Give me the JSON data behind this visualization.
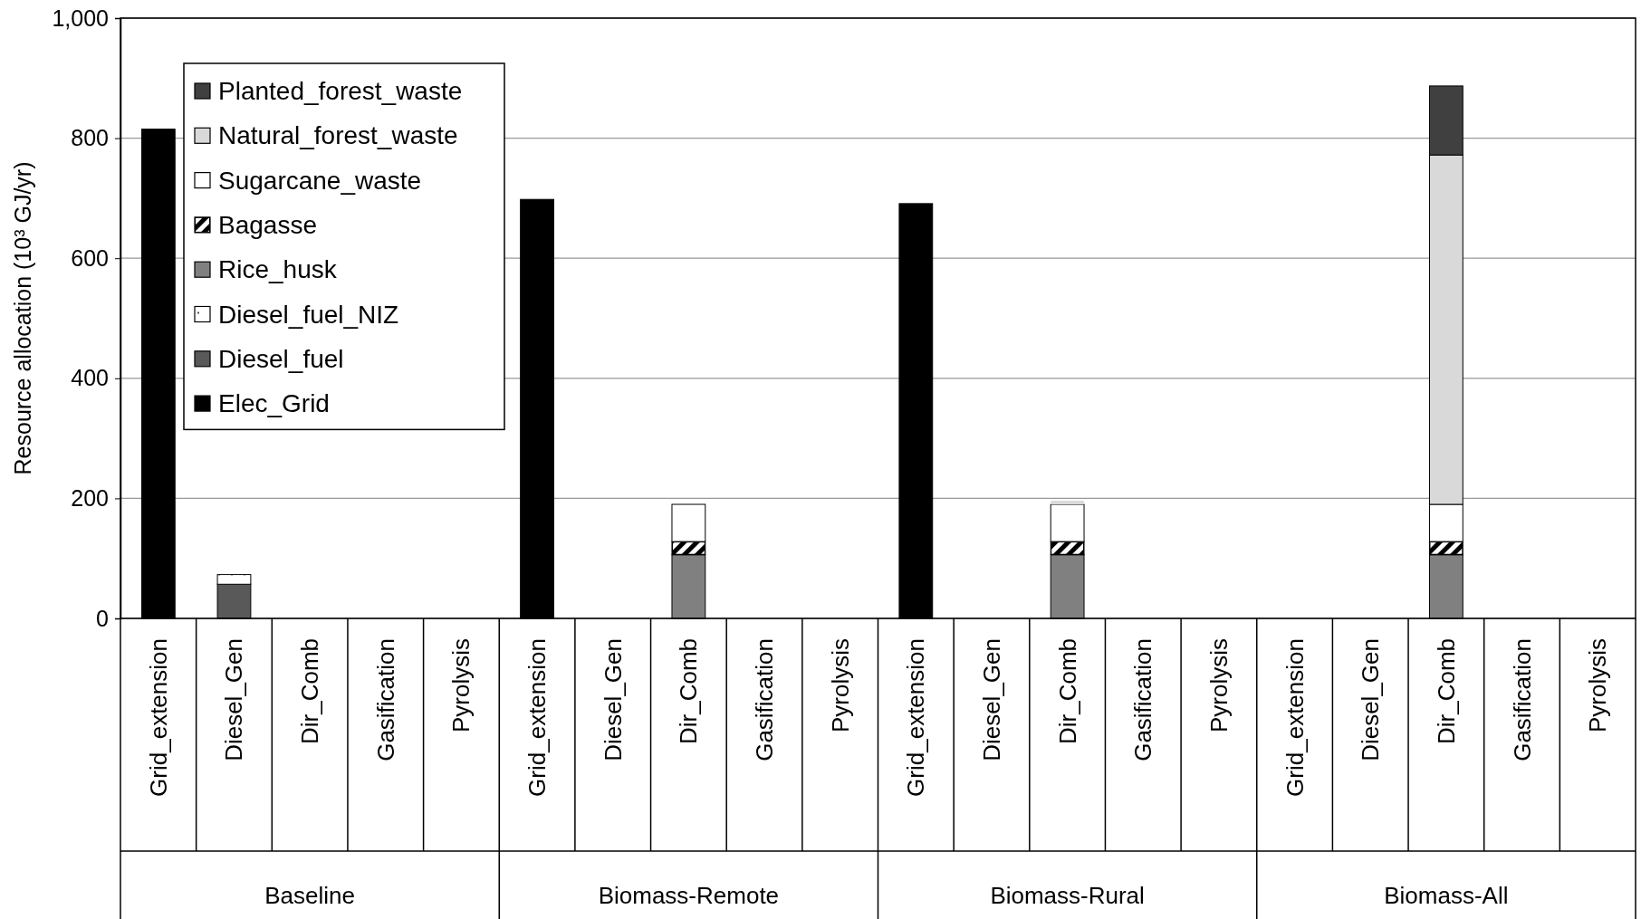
{
  "chart_data": {
    "type": "bar",
    "stacked": true,
    "ylabel": "Resource allocation (10³ GJ/yr)",
    "categories": [
      "Grid_extension",
      "Diesel_Gen",
      "Dir_Comb",
      "Gasification",
      "Pyrolysis",
      "Grid_extension",
      "Diesel_Gen",
      "Dir_Comb",
      "Gasification",
      "Pyrolysis",
      "Grid_extension",
      "Diesel_Gen",
      "Dir_Comb",
      "Gasification",
      "Pyrolysis",
      "Grid_extension",
      "Diesel_Gen",
      "Dir_Comb",
      "Gasification",
      "Pyrolysis"
    ],
    "annotations": [
      "Baseline",
      "Biomass-Remote",
      "Biomass-Rural",
      "Biomass-All"
    ],
    "series": [
      {
        "name": "Elec_Grid",
        "color": "#000000",
        "values": [
          815,
          0,
          0,
          0,
          0,
          698,
          0,
          0,
          0,
          0,
          691,
          0,
          0,
          0,
          0,
          0,
          0,
          0,
          0,
          0
        ]
      },
      {
        "name": "Diesel_fuel",
        "color": "#595959",
        "values": [
          0,
          57,
          0,
          0,
          0,
          0,
          0,
          0,
          0,
          0,
          0,
          0,
          0,
          0,
          0,
          0,
          0,
          0,
          0,
          0
        ]
      },
      {
        "name": "Diesel_fuel_NIZ",
        "color": "#ffffff",
        "values": [
          0,
          16,
          0,
          0,
          0,
          0,
          0,
          0,
          0,
          0,
          0,
          0,
          0,
          0,
          0,
          0,
          0,
          0,
          0,
          0
        ]
      },
      {
        "name": "Rice_husk",
        "color": "#808080",
        "values": [
          0,
          0,
          0,
          0,
          0,
          0,
          0,
          106,
          0,
          0,
          0,
          0,
          106,
          0,
          0,
          0,
          0,
          106,
          0,
          0
        ]
      },
      {
        "name": "Bagasse",
        "color": "#000000",
        "values": [
          0,
          0,
          0,
          0,
          0,
          0,
          0,
          22,
          0,
          0,
          0,
          0,
          22,
          0,
          0,
          0,
          0,
          22,
          0,
          0
        ]
      },
      {
        "name": "Sugarcane_waste",
        "color": "#ffffff",
        "values": [
          0,
          0,
          0,
          0,
          0,
          0,
          0,
          62,
          0,
          0,
          0,
          0,
          62,
          0,
          0,
          0,
          0,
          62,
          0,
          0
        ]
      },
      {
        "name": "Natural_forest_waste",
        "color": "#d9d9d9",
        "values": [
          0,
          0,
          0,
          0,
          0,
          0,
          0,
          0,
          0,
          0,
          0,
          0,
          6,
          0,
          0,
          0,
          0,
          582,
          0,
          0
        ]
      },
      {
        "name": "Planted_forest_waste",
        "color": "#404040",
        "values": [
          0,
          0,
          0,
          0,
          0,
          0,
          0,
          0,
          0,
          0,
          0,
          0,
          0,
          0,
          0,
          0,
          0,
          115,
          0,
          0
        ]
      }
    ],
    "ylim": [
      0,
      1000
    ],
    "yticks": [
      0,
      200,
      400,
      600,
      800,
      {
        "value": 1000,
        "label": "1,000"
      }
    ],
    "grid": "y",
    "legend": "top left"
  }
}
